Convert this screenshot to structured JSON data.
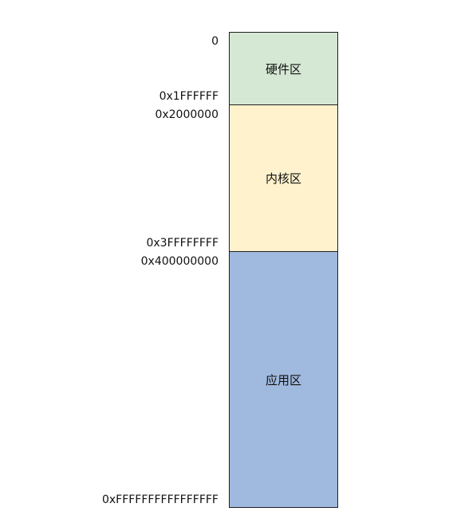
{
  "regions": [
    {
      "label": "硬件区",
      "color": "#d5e8d4"
    },
    {
      "label": "内核区",
      "color": "#fff2cc"
    },
    {
      "label": "应用区",
      "color": "#a0b9de"
    }
  ],
  "addresses": [
    "0",
    "0x1FFFFFF",
    "0x2000000",
    "0x3FFFFFFFF",
    "0x400000000",
    "0xFFFFFFFFFFFFFFFF"
  ]
}
